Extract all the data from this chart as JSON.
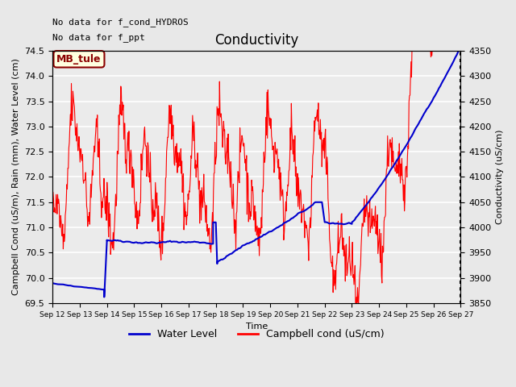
{
  "title": "Conductivity",
  "xlabel": "Time",
  "ylabel_left": "Campbell Cond (uS/m), Rain (mm), Water Level (cm)",
  "ylabel_right": "Conductivity (uS/cm)",
  "text_no_data": [
    "No data for f_cond_HYDROS",
    "No data for f_ppt"
  ],
  "legend_label": "MB_tule",
  "legend_entries": [
    "Water Level",
    "Campbell cond (uS/cm)"
  ],
  "xlim": [
    12,
    27
  ],
  "ylim_left": [
    69.5,
    74.5
  ],
  "ylim_right": [
    3850,
    4350
  ],
  "campbell_color": "#FF0000",
  "water_color": "#0000CD",
  "bg_color": "#E8E8E8",
  "plot_bg_color": "#EBEBEB",
  "grid_color": "#FFFFFF",
  "title_fontsize": 12,
  "label_fontsize": 8,
  "tick_fontsize": 8,
  "right_axis_dotted": true
}
